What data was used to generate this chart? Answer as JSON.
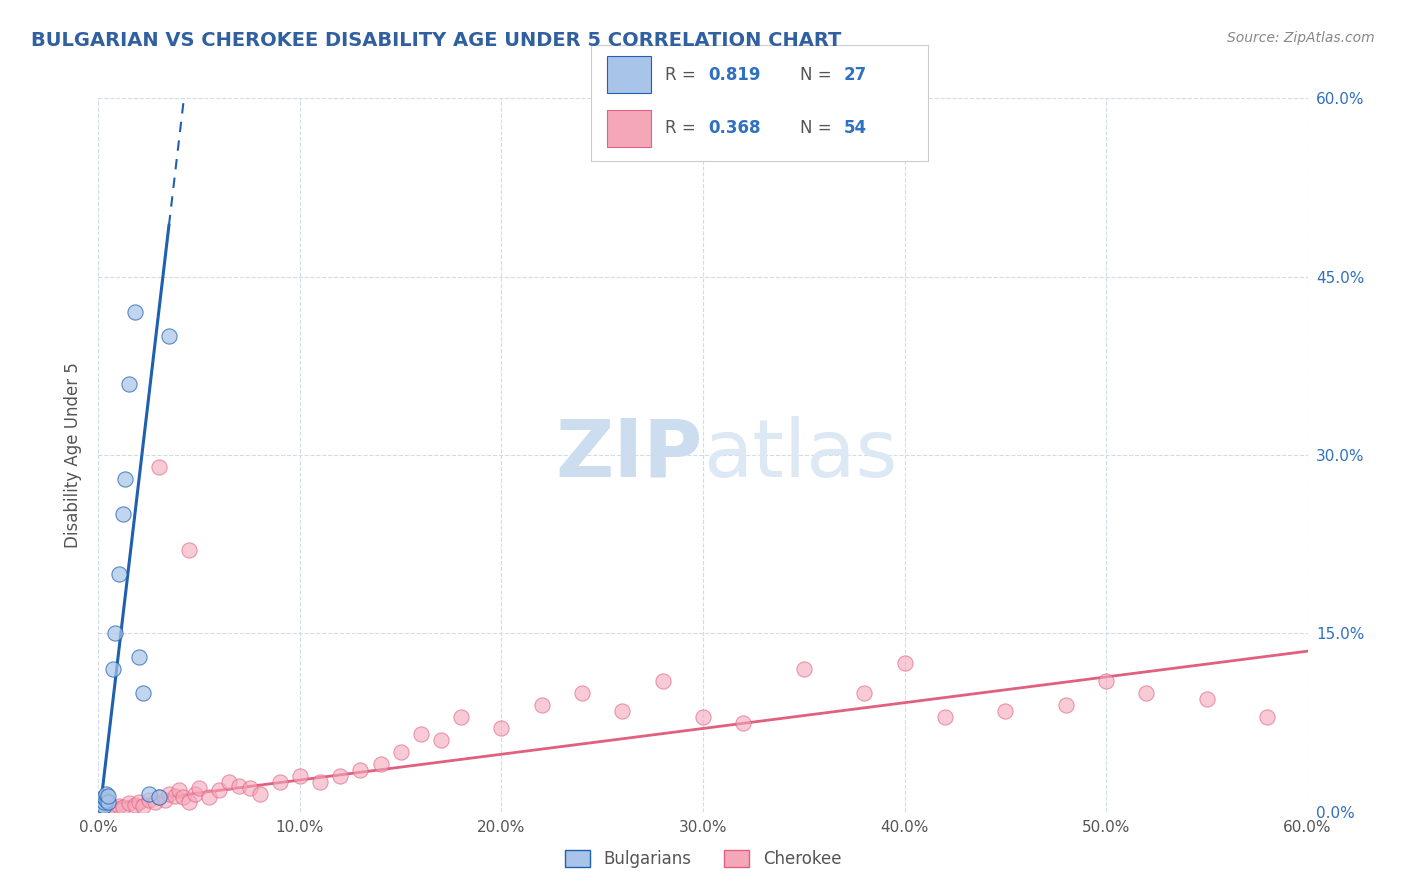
{
  "title": "BULGARIAN VS CHEROKEE DISABILITY AGE UNDER 5 CORRELATION CHART",
  "source": "Source: ZipAtlas.com",
  "ylabel": "Disability Age Under 5",
  "xlim": [
    0.0,
    0.6
  ],
  "ylim": [
    0.0,
    0.6
  ],
  "xticks": [
    0.0,
    0.1,
    0.2,
    0.3,
    0.4,
    0.5,
    0.6
  ],
  "xticklabels": [
    "0.0%",
    "10.0%",
    "20.0%",
    "30.0%",
    "40.0%",
    "50.0%",
    "60.0%"
  ],
  "yticks_right": [
    0.0,
    0.15,
    0.3,
    0.45,
    0.6
  ],
  "yticklabels_right": [
    "0.0%",
    "15.0%",
    "30.0%",
    "45.0%",
    "60.0%"
  ],
  "bulgarian_R": 0.819,
  "bulgarian_N": 27,
  "cherokee_R": 0.368,
  "cherokee_N": 54,
  "bulgarian_color": "#a8c4e8",
  "cherokee_color": "#f4a7b9",
  "bulgarian_line_color": "#2060b0",
  "cherokee_line_color": "#e06080",
  "title_color": "#3060a0",
  "watermark_color": "#ccddf0",
  "background_color": "#ffffff",
  "grid_color": "#d0dcea",
  "bulgarian_x": [
    0.001,
    0.001,
    0.001,
    0.001,
    0.001,
    0.002,
    0.002,
    0.002,
    0.003,
    0.003,
    0.003,
    0.004,
    0.004,
    0.005,
    0.005,
    0.007,
    0.008,
    0.01,
    0.012,
    0.013,
    0.015,
    0.018,
    0.02,
    0.022,
    0.025,
    0.03,
    0.035
  ],
  "bulgarian_y": [
    0.002,
    0.003,
    0.004,
    0.005,
    0.008,
    0.003,
    0.006,
    0.01,
    0.005,
    0.008,
    0.012,
    0.01,
    0.015,
    0.008,
    0.013,
    0.12,
    0.15,
    0.2,
    0.25,
    0.28,
    0.36,
    0.42,
    0.13,
    0.1,
    0.015,
    0.012,
    0.4
  ],
  "cherokee_x": [
    0.005,
    0.008,
    0.01,
    0.012,
    0.015,
    0.018,
    0.02,
    0.022,
    0.025,
    0.028,
    0.03,
    0.033,
    0.035,
    0.038,
    0.04,
    0.042,
    0.045,
    0.048,
    0.05,
    0.055,
    0.06,
    0.065,
    0.07,
    0.075,
    0.08,
    0.09,
    0.1,
    0.11,
    0.12,
    0.13,
    0.14,
    0.15,
    0.16,
    0.17,
    0.18,
    0.2,
    0.22,
    0.24,
    0.26,
    0.28,
    0.3,
    0.32,
    0.35,
    0.38,
    0.4,
    0.42,
    0.45,
    0.48,
    0.5,
    0.52,
    0.55,
    0.58,
    0.03,
    0.045
  ],
  "cherokee_y": [
    0.002,
    0.003,
    0.005,
    0.004,
    0.007,
    0.006,
    0.008,
    0.005,
    0.01,
    0.008,
    0.012,
    0.01,
    0.015,
    0.013,
    0.018,
    0.012,
    0.008,
    0.015,
    0.02,
    0.012,
    0.018,
    0.025,
    0.022,
    0.02,
    0.015,
    0.025,
    0.03,
    0.025,
    0.03,
    0.035,
    0.04,
    0.05,
    0.065,
    0.06,
    0.08,
    0.07,
    0.09,
    0.1,
    0.085,
    0.11,
    0.08,
    0.075,
    0.12,
    0.1,
    0.125,
    0.08,
    0.085,
    0.09,
    0.11,
    0.1,
    0.095,
    0.08,
    0.29,
    0.22
  ],
  "cherokee_line_x0": 0.0,
  "cherokee_line_y0": 0.005,
  "cherokee_line_x1": 0.6,
  "cherokee_line_y1": 0.135,
  "bulgarian_line_x0": 0.0,
  "bulgarian_line_y0": -0.01,
  "bulgarian_line_x1": 0.032,
  "bulgarian_line_y1": 0.45
}
